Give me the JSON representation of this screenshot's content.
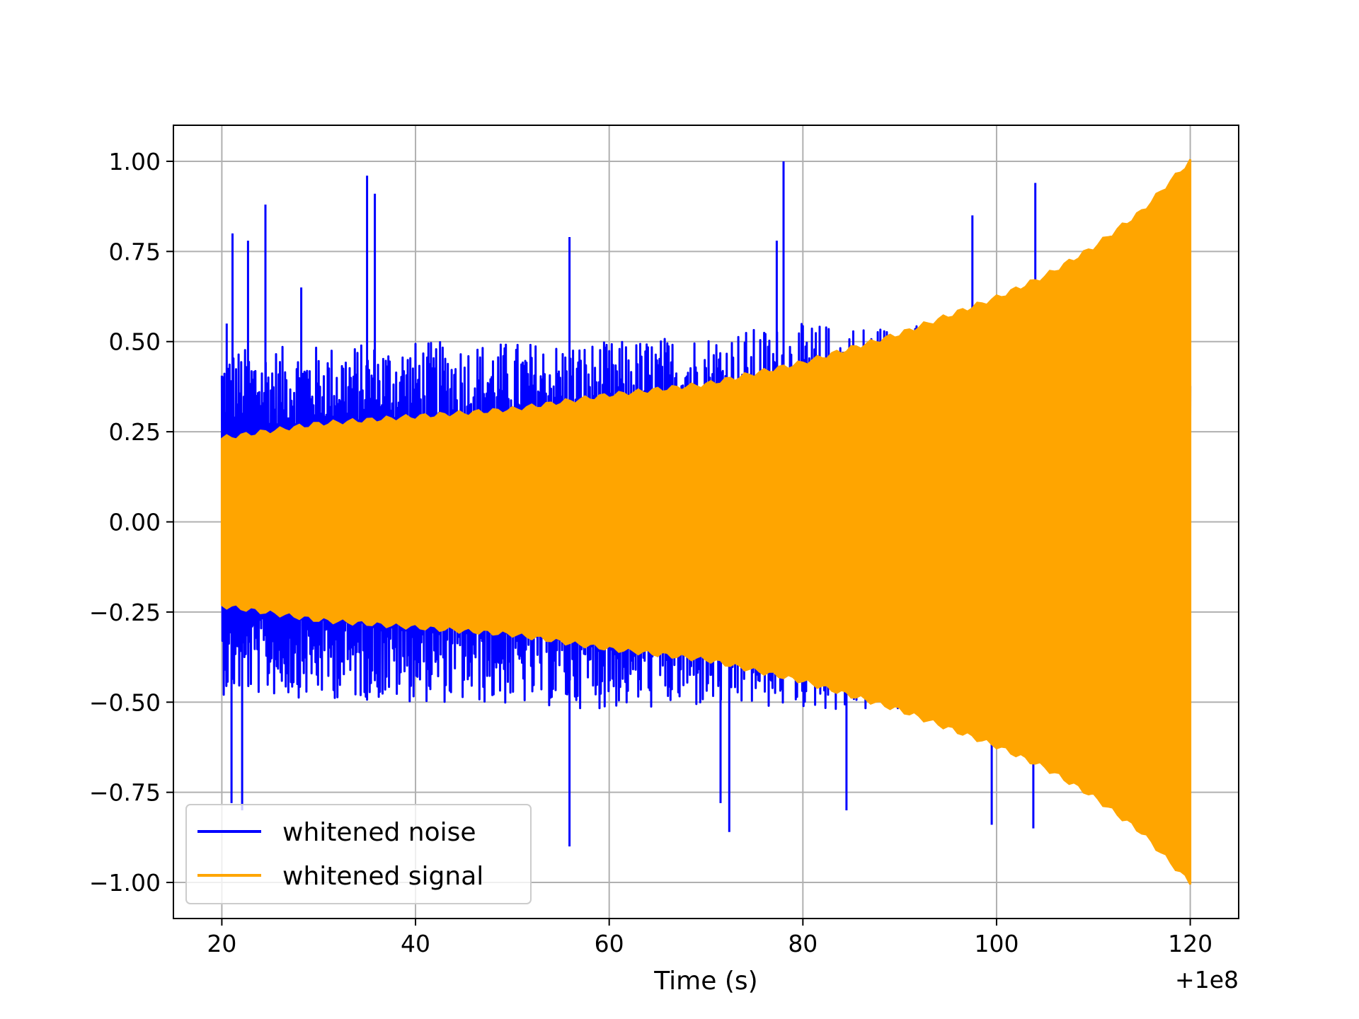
{
  "chart_data": {
    "type": "line",
    "xlabel": "Time (s)",
    "ylabel": "",
    "x_offset_text": "+1e8",
    "xlim": [
      15,
      125
    ],
    "ylim": [
      -1.1,
      1.1
    ],
    "xticks": [
      20,
      40,
      60,
      80,
      100,
      120
    ],
    "xtick_labels": [
      "20",
      "40",
      "60",
      "80",
      "100",
      "120"
    ],
    "yticks": [
      -1.0,
      -0.75,
      -0.5,
      -0.25,
      0.0,
      0.25,
      0.5,
      0.75,
      1.0
    ],
    "ytick_labels": [
      "−1.00",
      "−0.75",
      "−0.50",
      "−0.25",
      "0.00",
      "0.25",
      "0.50",
      "0.75",
      "1.00"
    ],
    "grid": true,
    "legend_position": "lower-left",
    "series": [
      {
        "name": "whitened noise",
        "color": "#0000ff",
        "x_range": [
          20,
          120
        ],
        "envelope": {
          "x": [
            20,
            40,
            60,
            80,
            100,
            120
          ],
          "upper": [
            0.48,
            0.5,
            0.5,
            0.55,
            0.55,
            0.6
          ],
          "lower": [
            -0.48,
            -0.5,
            -0.52,
            -0.52,
            -0.55,
            -0.6
          ]
        },
        "spikes": [
          {
            "x": 20.5,
            "y": 0.55
          },
          {
            "x": 21.1,
            "y": 0.8
          },
          {
            "x": 22.7,
            "y": 0.78
          },
          {
            "x": 24.5,
            "y": 0.88
          },
          {
            "x": 28.2,
            "y": 0.65
          },
          {
            "x": 35.0,
            "y": 0.96
          },
          {
            "x": 35.8,
            "y": 0.91
          },
          {
            "x": 55.9,
            "y": 0.79
          },
          {
            "x": 78.0,
            "y": 1.0
          },
          {
            "x": 77.3,
            "y": 0.78
          },
          {
            "x": 97.5,
            "y": 0.85
          },
          {
            "x": 104.0,
            "y": 0.94
          },
          {
            "x": 21.0,
            "y": -0.78
          },
          {
            "x": 22.1,
            "y": -0.8
          },
          {
            "x": 55.9,
            "y": -0.9
          },
          {
            "x": 72.4,
            "y": -0.86
          },
          {
            "x": 71.5,
            "y": -0.78
          },
          {
            "x": 84.5,
            "y": -0.8
          },
          {
            "x": 99.5,
            "y": -0.84
          },
          {
            "x": 103.8,
            "y": -0.85
          }
        ]
      },
      {
        "name": "whitened signal",
        "color": "#ffa500",
        "x_range": [
          20,
          120
        ],
        "envelope": {
          "x": [
            20,
            30,
            40,
            50,
            60,
            70,
            80,
            90,
            100,
            105,
            110,
            115,
            120
          ],
          "upper": [
            0.23,
            0.27,
            0.29,
            0.31,
            0.35,
            0.38,
            0.44,
            0.52,
            0.62,
            0.68,
            0.76,
            0.86,
            1.0
          ],
          "lower": [
            -0.23,
            -0.27,
            -0.29,
            -0.31,
            -0.35,
            -0.38,
            -0.44,
            -0.52,
            -0.62,
            -0.68,
            -0.76,
            -0.86,
            -1.0
          ]
        }
      }
    ]
  }
}
